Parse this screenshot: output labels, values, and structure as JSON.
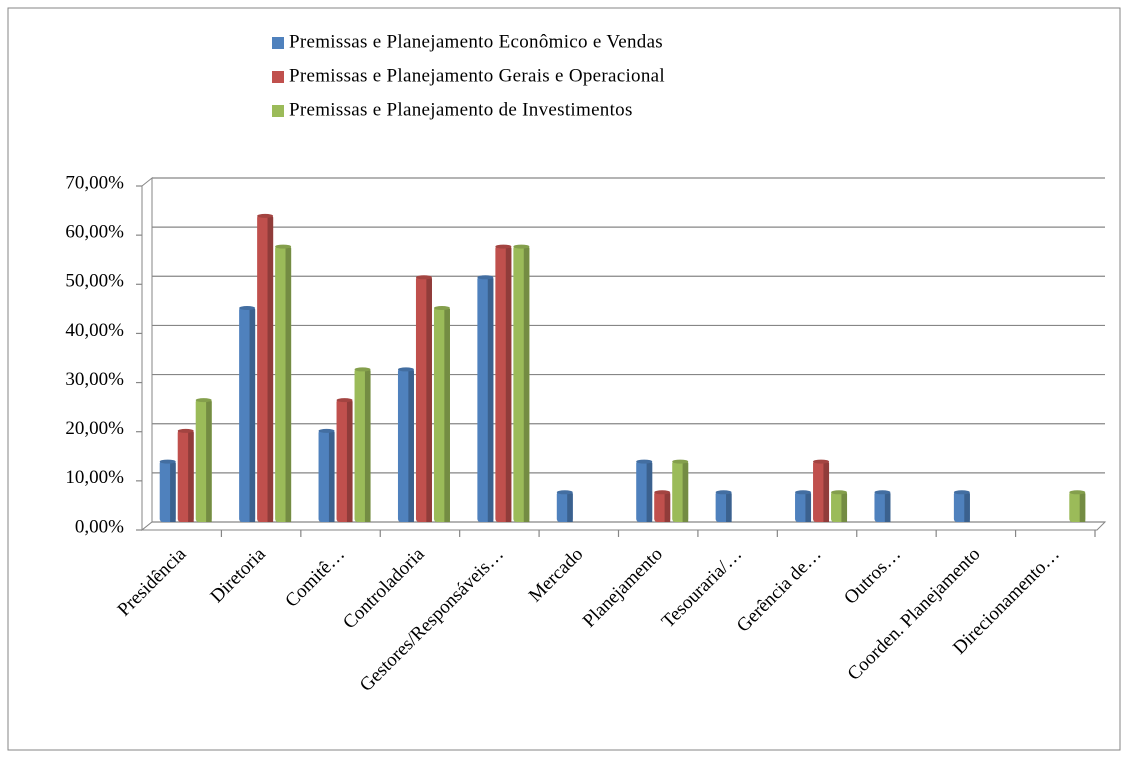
{
  "chart_data": {
    "type": "bar",
    "categories": [
      "Presidência",
      "Diretoria",
      "Comitê…",
      "Controladoria",
      "Gestores/Responsáveis…",
      "Mercado",
      "Planejamento",
      "Tesouraria/…",
      "Gerência de…",
      "Outros…",
      "Coorden. Planejamento",
      "Direcionamento…"
    ],
    "series": [
      {
        "name": "Premissas e Planejamento Econômico e Vendas",
        "color": "#4f81bd",
        "values": [
          12.5,
          43.75,
          18.75,
          31.25,
          50,
          6.25,
          12.5,
          6.25,
          6.25,
          6.25,
          6.25,
          0
        ]
      },
      {
        "name": "Premissas e Planejamento Gerais e Operacional",
        "color": "#c0504d",
        "values": [
          18.75,
          62.5,
          25,
          50,
          56.25,
          0,
          6.25,
          0,
          12.5,
          0,
          0,
          0
        ]
      },
      {
        "name": "Premissas e Planejamento de Investimentos",
        "color": "#9bbb59",
        "values": [
          25,
          56.25,
          31.25,
          43.75,
          56.25,
          0,
          12.5,
          0,
          6.25,
          0,
          0,
          6.25
        ]
      }
    ],
    "ylim": [
      0,
      70
    ],
    "yticks": [
      {
        "value": 0,
        "label": "0,00%"
      },
      {
        "value": 10,
        "label": "10,00%"
      },
      {
        "value": 20,
        "label": "20,00%"
      },
      {
        "value": 30,
        "label": "30,00%"
      },
      {
        "value": 40,
        "label": "40,00%"
      },
      {
        "value": 50,
        "label": "50,00%"
      },
      {
        "value": 60,
        "label": "60,00%"
      },
      {
        "value": 70,
        "label": "70,00%"
      }
    ],
    "grid": true,
    "legend": "top"
  }
}
